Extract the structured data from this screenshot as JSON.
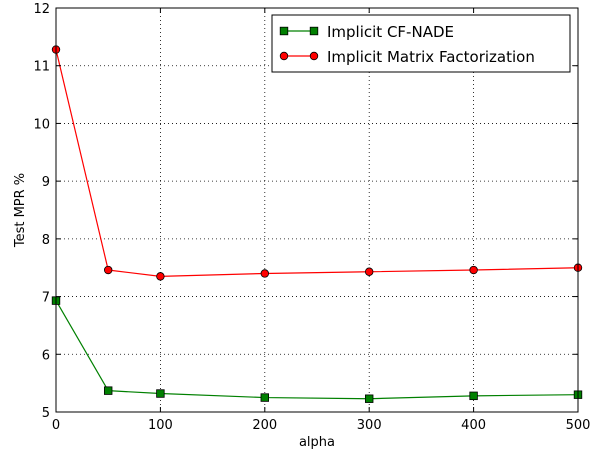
{
  "chart_data": {
    "type": "line",
    "xlabel": "alpha",
    "ylabel": "Test MPR %",
    "xlim": [
      0,
      500
    ],
    "ylim": [
      5,
      12
    ],
    "x_ticks": [
      "0",
      "100",
      "200",
      "300",
      "400",
      "500"
    ],
    "y_ticks": [
      "5",
      "6",
      "7",
      "8",
      "9",
      "10",
      "11",
      "12"
    ],
    "grid": true,
    "legend_position": "top-right",
    "x": [
      0,
      50,
      100,
      200,
      300,
      400,
      500
    ],
    "series": [
      {
        "name": "Implicit CF-NADE",
        "values": [
          6.93,
          5.37,
          5.32,
          5.25,
          5.23,
          5.28,
          5.3
        ],
        "color": "#008000",
        "marker": "square"
      },
      {
        "name": "Implicit Matrix Factorization",
        "values": [
          11.28,
          7.46,
          7.35,
          7.4,
          7.43,
          7.46,
          7.5
        ],
        "color": "#ff0000",
        "marker": "circle"
      }
    ]
  }
}
